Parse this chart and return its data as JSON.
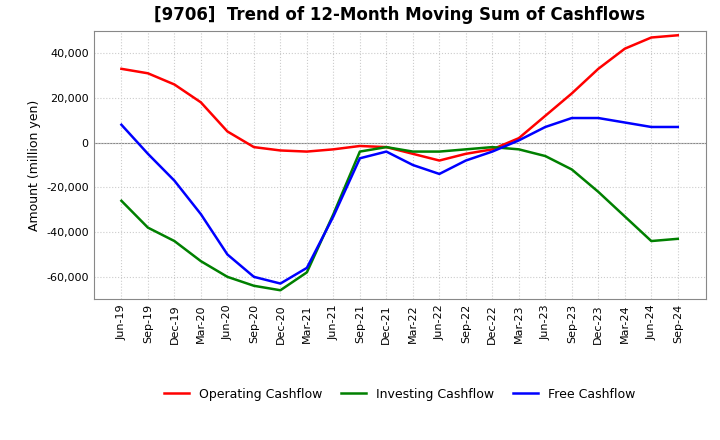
{
  "title": "[9706]  Trend of 12-Month Moving Sum of Cashflows",
  "ylabel": "Amount (million yen)",
  "ylim": [
    -70000,
    50000
  ],
  "yticks": [
    -60000,
    -40000,
    -20000,
    0,
    20000,
    40000
  ],
  "legend_labels": [
    "Operating Cashflow",
    "Investing Cashflow",
    "Free Cashflow"
  ],
  "legend_colors": [
    "#ff0000",
    "#008000",
    "#0000ff"
  ],
  "x_labels": [
    "Jun-19",
    "Sep-19",
    "Dec-19",
    "Mar-20",
    "Jun-20",
    "Sep-20",
    "Dec-20",
    "Mar-21",
    "Jun-21",
    "Sep-21",
    "Dec-21",
    "Mar-22",
    "Jun-22",
    "Sep-22",
    "Dec-22",
    "Mar-23",
    "Jun-23",
    "Sep-23",
    "Dec-23",
    "Mar-24",
    "Jun-24",
    "Sep-24"
  ],
  "operating_cashflow": [
    33000,
    31000,
    26000,
    18000,
    5000,
    -2000,
    -3500,
    -4000,
    -3000,
    -1500,
    -2000,
    -5000,
    -8000,
    -5000,
    -3000,
    2000,
    12000,
    22000,
    33000,
    42000,
    47000,
    48000
  ],
  "investing_cashflow": [
    -26000,
    -38000,
    -44000,
    -53000,
    -60000,
    -64000,
    -66000,
    -58000,
    -32000,
    -4000,
    -2000,
    -4000,
    -4000,
    -3000,
    -2000,
    -3000,
    -6000,
    -12000,
    -22000,
    -33000,
    -44000,
    -43000
  ],
  "free_cashflow": [
    8000,
    -5000,
    -17000,
    -32000,
    -50000,
    -60000,
    -63000,
    -56000,
    -33000,
    -7000,
    -4000,
    -10000,
    -14000,
    -8000,
    -4000,
    1000,
    7000,
    11000,
    11000,
    9000,
    7000,
    7000
  ],
  "grid_color": "#cccccc",
  "zero_line_color": "#888888",
  "border_color": "#888888",
  "background_color": "#ffffff",
  "title_fontsize": 12,
  "axis_fontsize": 8,
  "ylabel_fontsize": 9,
  "legend_fontsize": 9
}
